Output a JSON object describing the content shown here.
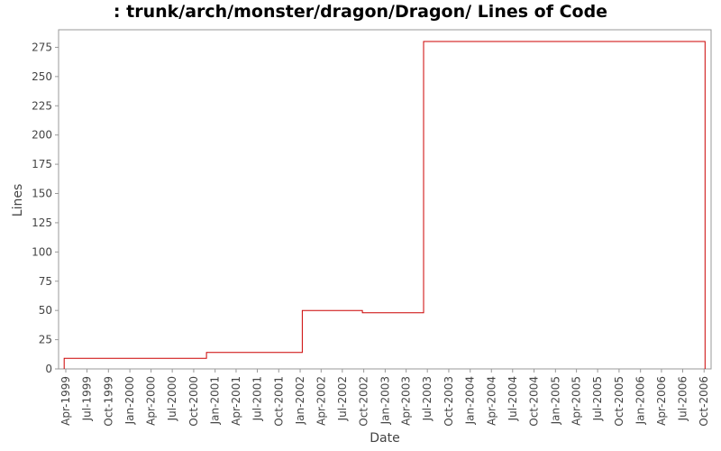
{
  "chart_data": {
    "type": "line",
    "title": ": trunk/arch/monster/dragon/Dragon/ Lines of Code",
    "xlabel": "Date",
    "ylabel": "Lines",
    "ylim": [
      0,
      290
    ],
    "xlim": [
      "1999-03-01",
      "2006-10-31"
    ],
    "yticks": [
      0,
      25,
      50,
      75,
      100,
      125,
      150,
      175,
      200,
      225,
      250,
      275
    ],
    "xticks": [
      "Apr-1999",
      "Jul-1999",
      "Oct-1999",
      "Jan-2000",
      "Apr-2000",
      "Jul-2000",
      "Oct-2000",
      "Jan-2001",
      "Apr-2001",
      "Jul-2001",
      "Oct-2001",
      "Jan-2002",
      "Apr-2002",
      "Jul-2002",
      "Oct-2002",
      "Jan-2003",
      "Apr-2003",
      "Jul-2003",
      "Oct-2003",
      "Jan-2004",
      "Apr-2004",
      "Jul-2004",
      "Oct-2004",
      "Jan-2005",
      "Apr-2005",
      "Jul-2005",
      "Oct-2005",
      "Jan-2006",
      "Apr-2006",
      "Jul-2006",
      "Oct-2006"
    ],
    "grid": false,
    "step": true,
    "series_color": "#cc0000",
    "series": [
      {
        "points": [
          {
            "x": "1999-03-25",
            "y": 0
          },
          {
            "x": "1999-03-25",
            "y": 9
          },
          {
            "x": "2000-11-25",
            "y": 9
          },
          {
            "x": "2000-11-25",
            "y": 14
          },
          {
            "x": "2002-01-10",
            "y": 14
          },
          {
            "x": "2002-01-10",
            "y": 50
          },
          {
            "x": "2002-09-25",
            "y": 50
          },
          {
            "x": "2002-09-25",
            "y": 48
          },
          {
            "x": "2003-06-15",
            "y": 48
          },
          {
            "x": "2003-06-15",
            "y": 280
          },
          {
            "x": "2006-10-05",
            "y": 280
          },
          {
            "x": "2006-10-05",
            "y": 0
          }
        ]
      }
    ]
  }
}
